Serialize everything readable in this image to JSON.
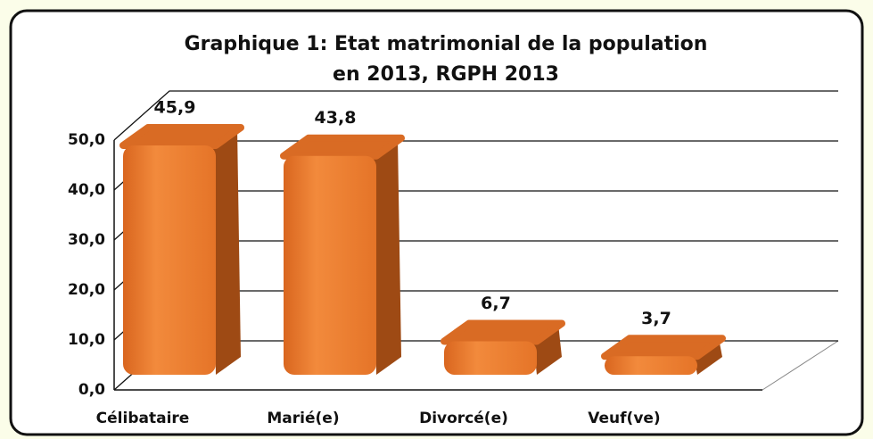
{
  "chart_data": {
    "type": "bar3d",
    "title": [
      "Graphique 1: Etat matrimonial de la population",
      "en 2013, RGPH 2013"
    ],
    "categories": [
      "Célibataire",
      "Marié(e)",
      "Divorcé(e)",
      "Veuf(ve)"
    ],
    "values": [
      45.9,
      43.8,
      6.7,
      3.7
    ],
    "value_labels": [
      "45,9",
      "43,8",
      "6,7",
      "3,7"
    ],
    "color": "#ed7d31",
    "ylim": [
      0,
      50
    ],
    "yticks": [
      {
        "value": 0,
        "label": "0,0"
      },
      {
        "value": 10,
        "label": "10,0"
      },
      {
        "value": 20,
        "label": "20,0"
      },
      {
        "value": 30,
        "label": "30,0"
      },
      {
        "value": 40,
        "label": "40,0"
      },
      {
        "value": 50,
        "label": "50,0"
      }
    ],
    "grid": true
  }
}
